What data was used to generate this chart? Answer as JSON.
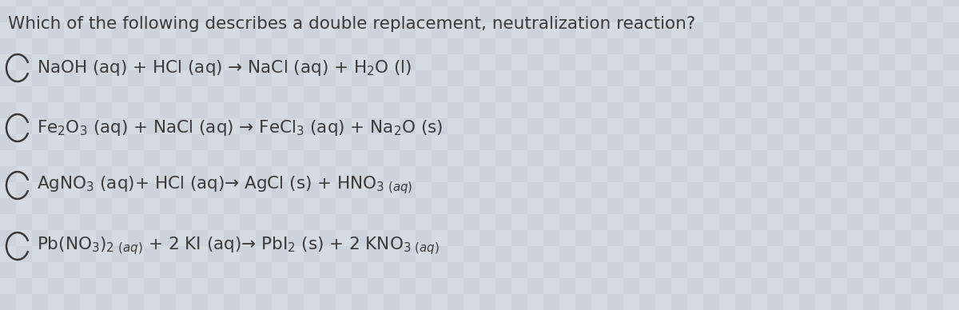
{
  "title": "Which of the following describes a double replacement, neutralization reaction?",
  "bg_color": "#cdd3db",
  "text_color": "#3a3a3a",
  "options": [
    {
      "label": "NaOH (aq) + HCl (aq) → NaCl (aq) + H$_2$O (l)"
    },
    {
      "label": "Fe$_2$O$_3$ (aq) + NaCl (aq) → FeCl$_3$ (aq) + Na$_2$O (s)"
    },
    {
      "label": "AgNO$_3$ (aq)+ HCl (aq)→ AgCl (s) + HNO$_{3\\ (aq)}$"
    },
    {
      "label": "Pb(NO$_3$)$_{2\\ (aq)}$ + 2 KI (aq)→ PbI$_2$ (s) + 2 KNO$_{3\\ (aq)}$"
    }
  ],
  "title_fontsize": 15.5,
  "option_fontsize": 15.5,
  "bg_tile_color1": "#ccd3da",
  "bg_tile_color2": "#d4dbe1"
}
